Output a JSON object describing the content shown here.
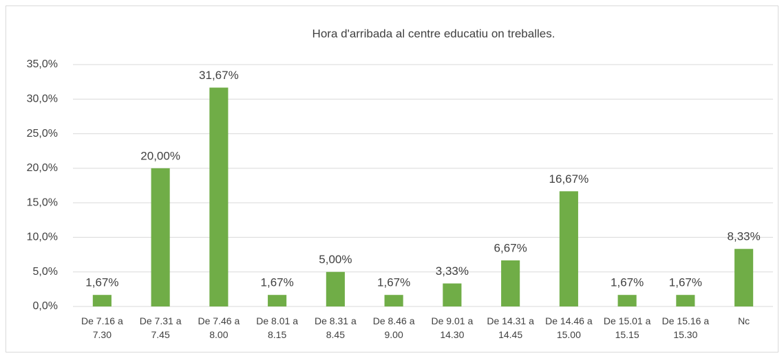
{
  "chart_data": {
    "type": "bar",
    "title": "Hora d'arribada al centre educatiu on treballes.",
    "categories": [
      "De 7.16 a 7.30",
      "De 7.31 a 7.45",
      "De 7.46 a 8.00",
      "De 8.01 a 8.15",
      "De 8.31 a 8.45",
      "De 8.46 a 9.00",
      "De 9.01 a 14.30",
      "De 14.31 a 14.45",
      "De 14.46 a 15.00",
      "De 15.01 a 15.15",
      "De 15.16 a 15.30",
      "Nc"
    ],
    "values": [
      1.67,
      20.0,
      31.67,
      1.67,
      5.0,
      1.67,
      3.33,
      6.67,
      16.67,
      1.67,
      1.67,
      8.33
    ],
    "value_labels": [
      "1,67%",
      "20,00%",
      "31,67%",
      "1,67%",
      "5,00%",
      "1,67%",
      "3,33%",
      "6,67%",
      "16,67%",
      "1,67%",
      "1,67%",
      "8,33%"
    ],
    "color": "#70ad47",
    "ylim": [
      0,
      35
    ],
    "yticks": [
      {
        "value": 0,
        "label": "0,0%"
      },
      {
        "value": 5,
        "label": "5,0%"
      },
      {
        "value": 10,
        "label": "10,0%"
      },
      {
        "value": 15,
        "label": "15,0%"
      },
      {
        "value": 20,
        "label": "20,0%"
      },
      {
        "value": 25,
        "label": "25,0%"
      },
      {
        "value": 30,
        "label": "30,0%"
      },
      {
        "value": 35,
        "label": "35,0%"
      }
    ],
    "grid": true
  }
}
